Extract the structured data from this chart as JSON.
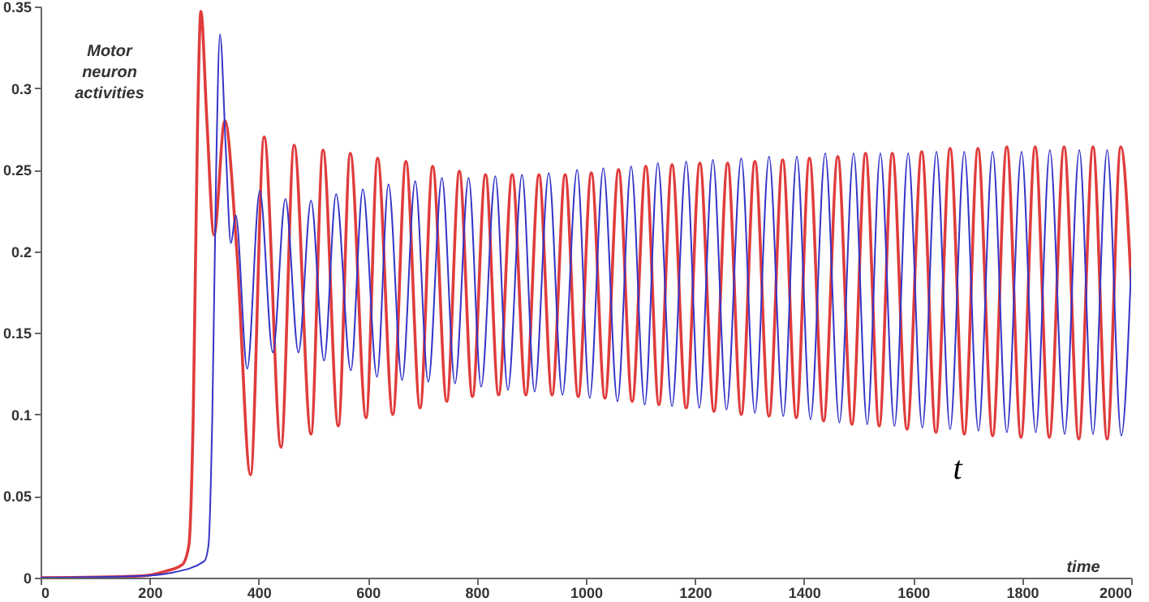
{
  "chart_data": {
    "type": "line",
    "xlabel": "time",
    "ylabel": "Motor neuron activities",
    "annotations": [
      "t"
    ],
    "xlim": [
      0,
      2000
    ],
    "xticks": [
      0,
      200,
      400,
      600,
      800,
      1000,
      1200,
      1400,
      1600,
      1800,
      2000
    ],
    "ylim": [
      0,
      0.35
    ],
    "yticks": [
      0,
      0.05,
      0.1,
      0.15,
      0.2,
      0.25,
      0.3,
      0.35
    ],
    "marker": "none",
    "line_style": "solid",
    "series": [
      {
        "color": "#e03c3c",
        "x": [
          0,
          180,
          230,
          260,
          272,
          280,
          288,
          294,
          305,
          318,
          338,
          360,
          385,
          410,
          441,
          465,
          496,
          518,
          546,
          568,
          597,
          618,
          646,
          670,
          696,
          719,
          745,
          768,
          792,
          816,
          840,
          865,
          890,
          914,
          938,
          962,
          986,
          1010,
          1035,
          1060,
          1085,
          1110,
          1134,
          1158,
          1184,
          1209,
          1235,
          1260,
          1285,
          1310,
          1336,
          1361,
          1386,
          1410,
          1436,
          1462,
          1488,
          1513,
          1538,
          1562,
          1589,
          1616,
          1642,
          1668,
          1694,
          1719,
          1746,
          1772,
          1798,
          1824,
          1850,
          1877,
          1904,
          1930,
          1956,
          1981,
          2000
        ],
        "values": [
          0,
          0.001,
          0.004,
          0.008,
          0.02,
          0.1,
          0.28,
          0.347,
          0.28,
          0.21,
          0.28,
          0.2,
          0.063,
          0.27,
          0.08,
          0.265,
          0.088,
          0.262,
          0.093,
          0.26,
          0.098,
          0.257,
          0.1,
          0.255,
          0.104,
          0.252,
          0.108,
          0.249,
          0.111,
          0.247,
          0.112,
          0.247,
          0.112,
          0.247,
          0.112,
          0.247,
          0.111,
          0.248,
          0.11,
          0.25,
          0.108,
          0.252,
          0.106,
          0.253,
          0.104,
          0.254,
          0.102,
          0.254,
          0.1,
          0.255,
          0.099,
          0.256,
          0.098,
          0.257,
          0.096,
          0.258,
          0.094,
          0.26,
          0.093,
          0.26,
          0.091,
          0.261,
          0.089,
          0.263,
          0.088,
          0.263,
          0.087,
          0.264,
          0.086,
          0.264,
          0.086,
          0.264,
          0.085,
          0.264,
          0.085,
          0.264,
          0.18
        ]
      },
      {
        "color": "#3434c8",
        "x": [
          0,
          180,
          240,
          300,
          308,
          315,
          322,
          329,
          340,
          349,
          358,
          379,
          402,
          426,
          449,
          473,
          496,
          520,
          542,
          569,
          591,
          617,
          638,
          663,
          687,
          711,
          736,
          760,
          785,
          808,
          834,
          857,
          883,
          906,
          932,
          957,
          984,
          1007,
          1032,
          1058,
          1083,
          1108,
          1132,
          1158,
          1184,
          1208,
          1233,
          1258,
          1285,
          1310,
          1336,
          1362,
          1387,
          1412,
          1439,
          1465,
          1491,
          1516,
          1540,
          1566,
          1591,
          1617,
          1643,
          1668,
          1694,
          1720,
          1746,
          1772,
          1799,
          1825,
          1851,
          1878,
          1905,
          1930,
          1956,
          1982,
          2000
        ],
        "values": [
          0,
          0.001,
          0.003,
          0.01,
          0.02,
          0.1,
          0.25,
          0.333,
          0.26,
          0.205,
          0.222,
          0.128,
          0.237,
          0.138,
          0.232,
          0.138,
          0.231,
          0.133,
          0.235,
          0.127,
          0.238,
          0.123,
          0.241,
          0.121,
          0.243,
          0.12,
          0.245,
          0.119,
          0.245,
          0.117,
          0.246,
          0.115,
          0.247,
          0.114,
          0.248,
          0.112,
          0.25,
          0.11,
          0.251,
          0.108,
          0.252,
          0.106,
          0.254,
          0.105,
          0.255,
          0.104,
          0.256,
          0.103,
          0.257,
          0.101,
          0.258,
          0.099,
          0.258,
          0.097,
          0.26,
          0.095,
          0.26,
          0.094,
          0.26,
          0.093,
          0.26,
          0.092,
          0.261,
          0.091,
          0.261,
          0.09,
          0.261,
          0.089,
          0.261,
          0.089,
          0.262,
          0.088,
          0.262,
          0.088,
          0.262,
          0.087,
          0.19
        ]
      }
    ]
  }
}
